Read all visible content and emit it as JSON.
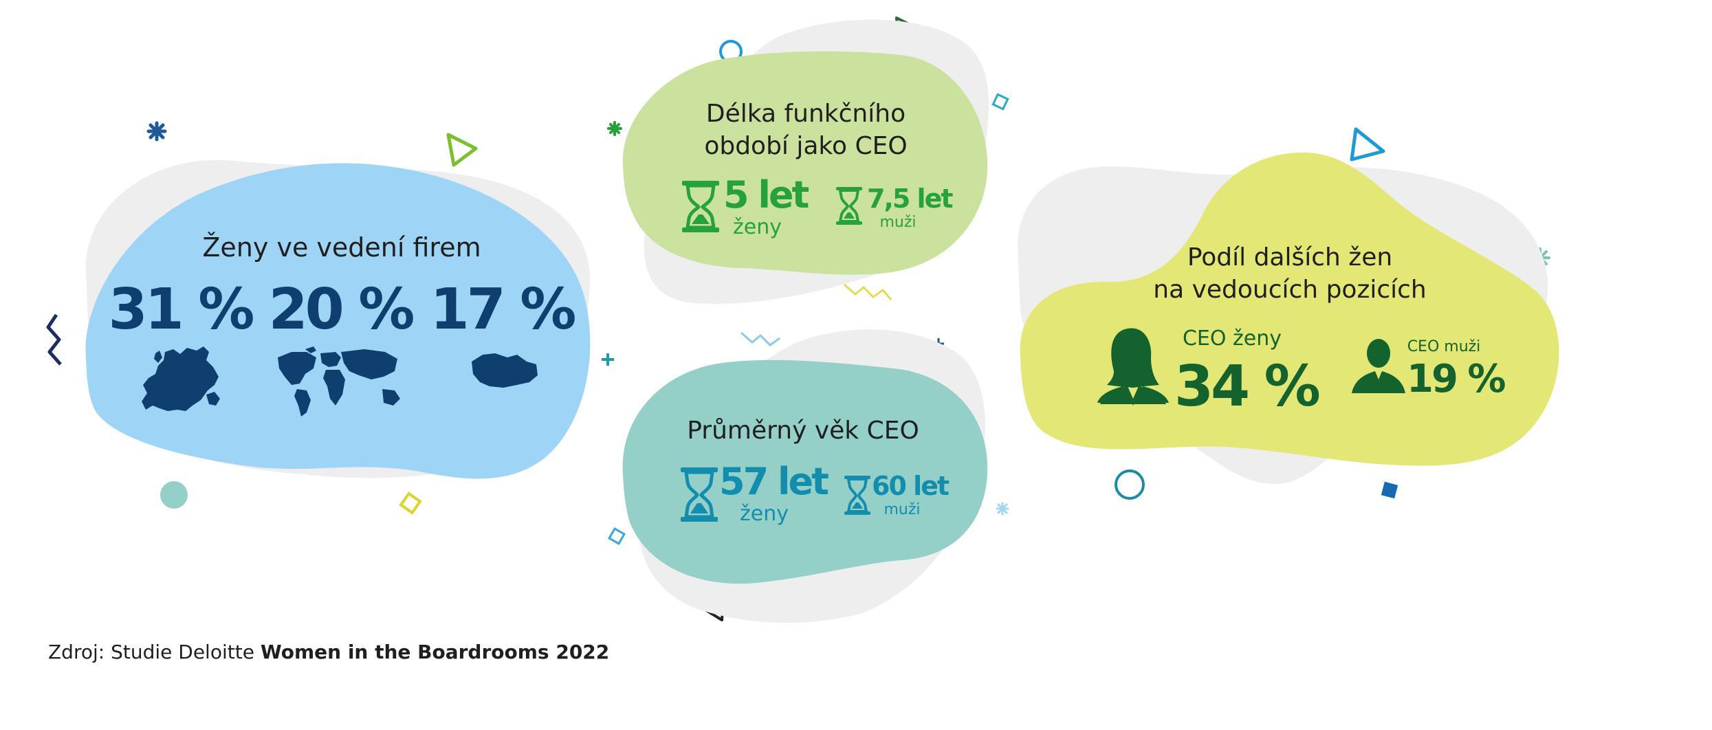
{
  "colors": {
    "blue_blob": "#9ed5f6",
    "green_blob": "#cbe29f",
    "teal_blob": "#95d0c8",
    "yellow_blob": "#e3e776",
    "grey_blob": "#eeeeee",
    "navy": "#0e3f6e",
    "green": "#27a13a",
    "teal": "#128dae",
    "dark_green": "#14632f",
    "text": "#1f1f1f"
  },
  "women_leadership": {
    "title": "Ženy ve vedení firem",
    "stats": [
      {
        "value": "31 %",
        "region": "europe-map"
      },
      {
        "value": "20 %",
        "region": "world-map"
      },
      {
        "value": "17 %",
        "region": "czechia-map"
      }
    ]
  },
  "ceo_tenure": {
    "title_line1": "Délka funkčního",
    "title_line2": "období jako CEO",
    "women_value": "5 let",
    "women_label": "ženy",
    "men_value": "7,5 let",
    "men_label": "muži"
  },
  "ceo_age": {
    "title": "Průměrný věk CEO",
    "women_value": "57 let",
    "women_label": "ženy",
    "men_value": "60 let",
    "men_label": "muži"
  },
  "women_share": {
    "title_line1": "Podíl dalších žen",
    "title_line2": "na vedoucích pozicích",
    "women_label": "CEO ženy",
    "women_value": "34 %",
    "men_label": "CEO muži",
    "men_value": "19 %"
  },
  "source": {
    "prefix": "Zdroj: Studie Deloitte ",
    "title": "Women in the Boardrooms 2022"
  }
}
